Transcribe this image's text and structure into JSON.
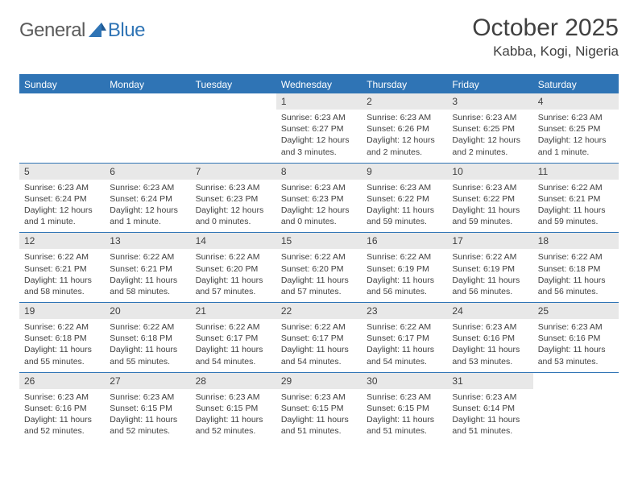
{
  "brand": {
    "part1": "General",
    "part2": "Blue"
  },
  "title": {
    "month": "October 2025",
    "location": "Kabba, Kogi, Nigeria"
  },
  "style": {
    "accent": "#2f74b5",
    "header_bg": "#2f74b5",
    "header_text": "#ffffff",
    "daynum_bg": "#e8e8e8",
    "text_color": "#404040",
    "font_title": 30,
    "font_location": 17,
    "font_dayhdr": 12,
    "font_daynum": 12,
    "font_body": 10.5
  },
  "weekdays": [
    "Sunday",
    "Monday",
    "Tuesday",
    "Wednesday",
    "Thursday",
    "Friday",
    "Saturday"
  ],
  "weeks": [
    [
      null,
      null,
      null,
      {
        "n": "1",
        "sr": "Sunrise: 6:23 AM",
        "ss": "Sunset: 6:27 PM",
        "dl": "Daylight: 12 hours and 3 minutes."
      },
      {
        "n": "2",
        "sr": "Sunrise: 6:23 AM",
        "ss": "Sunset: 6:26 PM",
        "dl": "Daylight: 12 hours and 2 minutes."
      },
      {
        "n": "3",
        "sr": "Sunrise: 6:23 AM",
        "ss": "Sunset: 6:25 PM",
        "dl": "Daylight: 12 hours and 2 minutes."
      },
      {
        "n": "4",
        "sr": "Sunrise: 6:23 AM",
        "ss": "Sunset: 6:25 PM",
        "dl": "Daylight: 12 hours and 1 minute."
      }
    ],
    [
      {
        "n": "5",
        "sr": "Sunrise: 6:23 AM",
        "ss": "Sunset: 6:24 PM",
        "dl": "Daylight: 12 hours and 1 minute."
      },
      {
        "n": "6",
        "sr": "Sunrise: 6:23 AM",
        "ss": "Sunset: 6:24 PM",
        "dl": "Daylight: 12 hours and 1 minute."
      },
      {
        "n": "7",
        "sr": "Sunrise: 6:23 AM",
        "ss": "Sunset: 6:23 PM",
        "dl": "Daylight: 12 hours and 0 minutes."
      },
      {
        "n": "8",
        "sr": "Sunrise: 6:23 AM",
        "ss": "Sunset: 6:23 PM",
        "dl": "Daylight: 12 hours and 0 minutes."
      },
      {
        "n": "9",
        "sr": "Sunrise: 6:23 AM",
        "ss": "Sunset: 6:22 PM",
        "dl": "Daylight: 11 hours and 59 minutes."
      },
      {
        "n": "10",
        "sr": "Sunrise: 6:23 AM",
        "ss": "Sunset: 6:22 PM",
        "dl": "Daylight: 11 hours and 59 minutes."
      },
      {
        "n": "11",
        "sr": "Sunrise: 6:22 AM",
        "ss": "Sunset: 6:21 PM",
        "dl": "Daylight: 11 hours and 59 minutes."
      }
    ],
    [
      {
        "n": "12",
        "sr": "Sunrise: 6:22 AM",
        "ss": "Sunset: 6:21 PM",
        "dl": "Daylight: 11 hours and 58 minutes."
      },
      {
        "n": "13",
        "sr": "Sunrise: 6:22 AM",
        "ss": "Sunset: 6:21 PM",
        "dl": "Daylight: 11 hours and 58 minutes."
      },
      {
        "n": "14",
        "sr": "Sunrise: 6:22 AM",
        "ss": "Sunset: 6:20 PM",
        "dl": "Daylight: 11 hours and 57 minutes."
      },
      {
        "n": "15",
        "sr": "Sunrise: 6:22 AM",
        "ss": "Sunset: 6:20 PM",
        "dl": "Daylight: 11 hours and 57 minutes."
      },
      {
        "n": "16",
        "sr": "Sunrise: 6:22 AM",
        "ss": "Sunset: 6:19 PM",
        "dl": "Daylight: 11 hours and 56 minutes."
      },
      {
        "n": "17",
        "sr": "Sunrise: 6:22 AM",
        "ss": "Sunset: 6:19 PM",
        "dl": "Daylight: 11 hours and 56 minutes."
      },
      {
        "n": "18",
        "sr": "Sunrise: 6:22 AM",
        "ss": "Sunset: 6:18 PM",
        "dl": "Daylight: 11 hours and 56 minutes."
      }
    ],
    [
      {
        "n": "19",
        "sr": "Sunrise: 6:22 AM",
        "ss": "Sunset: 6:18 PM",
        "dl": "Daylight: 11 hours and 55 minutes."
      },
      {
        "n": "20",
        "sr": "Sunrise: 6:22 AM",
        "ss": "Sunset: 6:18 PM",
        "dl": "Daylight: 11 hours and 55 minutes."
      },
      {
        "n": "21",
        "sr": "Sunrise: 6:22 AM",
        "ss": "Sunset: 6:17 PM",
        "dl": "Daylight: 11 hours and 54 minutes."
      },
      {
        "n": "22",
        "sr": "Sunrise: 6:22 AM",
        "ss": "Sunset: 6:17 PM",
        "dl": "Daylight: 11 hours and 54 minutes."
      },
      {
        "n": "23",
        "sr": "Sunrise: 6:22 AM",
        "ss": "Sunset: 6:17 PM",
        "dl": "Daylight: 11 hours and 54 minutes."
      },
      {
        "n": "24",
        "sr": "Sunrise: 6:23 AM",
        "ss": "Sunset: 6:16 PM",
        "dl": "Daylight: 11 hours and 53 minutes."
      },
      {
        "n": "25",
        "sr": "Sunrise: 6:23 AM",
        "ss": "Sunset: 6:16 PM",
        "dl": "Daylight: 11 hours and 53 minutes."
      }
    ],
    [
      {
        "n": "26",
        "sr": "Sunrise: 6:23 AM",
        "ss": "Sunset: 6:16 PM",
        "dl": "Daylight: 11 hours and 52 minutes."
      },
      {
        "n": "27",
        "sr": "Sunrise: 6:23 AM",
        "ss": "Sunset: 6:15 PM",
        "dl": "Daylight: 11 hours and 52 minutes."
      },
      {
        "n": "28",
        "sr": "Sunrise: 6:23 AM",
        "ss": "Sunset: 6:15 PM",
        "dl": "Daylight: 11 hours and 52 minutes."
      },
      {
        "n": "29",
        "sr": "Sunrise: 6:23 AM",
        "ss": "Sunset: 6:15 PM",
        "dl": "Daylight: 11 hours and 51 minutes."
      },
      {
        "n": "30",
        "sr": "Sunrise: 6:23 AM",
        "ss": "Sunset: 6:15 PM",
        "dl": "Daylight: 11 hours and 51 minutes."
      },
      {
        "n": "31",
        "sr": "Sunrise: 6:23 AM",
        "ss": "Sunset: 6:14 PM",
        "dl": "Daylight: 11 hours and 51 minutes."
      },
      null
    ]
  ]
}
